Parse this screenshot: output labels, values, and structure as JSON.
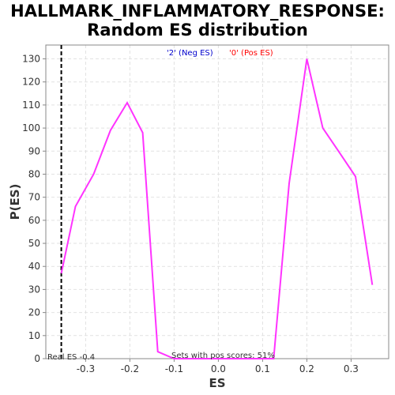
{
  "chart_data": {
    "type": "line",
    "title_line1": "HALLMARK_INFLAMMATORY_RESPONSE:",
    "title_line2": "Random ES distribution",
    "xlabel": "ES",
    "ylabel": "P(ES)",
    "xlim": [
      -0.39,
      0.385
    ],
    "ylim": [
      0,
      136
    ],
    "x_ticks": [
      -0.3,
      -0.2,
      -0.1,
      0.0,
      0.1,
      0.2,
      0.3
    ],
    "x_tick_labels": [
      "-0.3",
      "-0.2",
      "-0.1",
      "0.0",
      "0.1",
      "0.2",
      "0.3"
    ],
    "y_ticks": [
      0,
      10,
      20,
      30,
      40,
      50,
      60,
      70,
      80,
      90,
      100,
      110,
      120,
      130
    ],
    "grid": true,
    "series": [
      {
        "color": "#ff33ff",
        "x": [
          -0.355,
          -0.323,
          -0.282,
          -0.244,
          -0.206,
          -0.171,
          -0.137,
          -0.1,
          -0.066,
          -0.03,
          0.008,
          0.047,
          0.086,
          0.125,
          0.16,
          0.2,
          0.236,
          0.275,
          0.31,
          0.348
        ],
        "y": [
          37,
          66,
          80,
          99,
          111,
          98,
          3,
          0,
          0,
          0,
          0,
          0,
          0,
          0,
          76,
          130,
          100,
          89,
          79,
          32
        ]
      }
    ],
    "real_es": -0.355,
    "real_es_label": "Real ES -0.4",
    "legend": {
      "neg": "'2' (Neg ES)",
      "neg_color": "#0000cc",
      "pos": "'0' (Pos ES)",
      "pos_color": "#ff0000"
    },
    "annotation": "Sets with pos scores: 51%"
  }
}
